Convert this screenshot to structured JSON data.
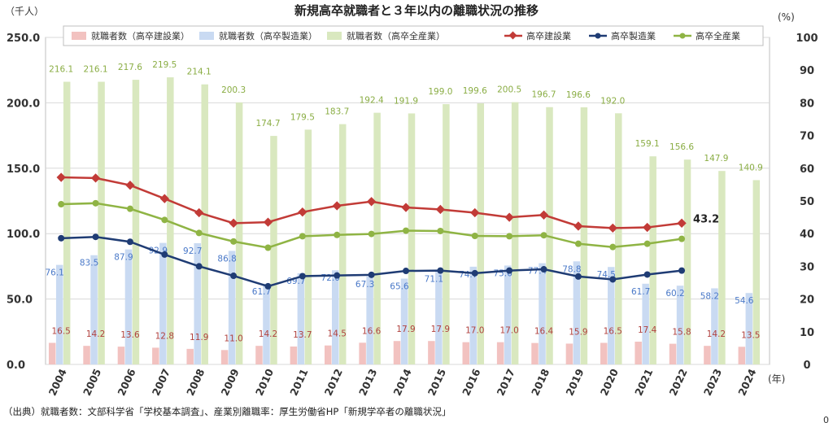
{
  "page_title": "新規高卒就職者と３年以内の離職状況の推移",
  "source_note": "（出典）就職者数：文部科学省「学校基本調査」、産業別離職率：厚生労働省HP「新規学卒者の離職状況」",
  "corner_mark": "0",
  "chart_data": {
    "type": "bar",
    "title": "新規高卒就職者と３年以内の離職状況の推移",
    "left_axis_unit": "（千人）",
    "right_axis_unit": "(%)",
    "x_unit": "(年)",
    "left_ylim": [
      0,
      250
    ],
    "left_ticks": [
      "0.0",
      "50.0",
      "100.0",
      "150.0",
      "200.0",
      "250.0"
    ],
    "left_tick_values": [
      0,
      50,
      100,
      150,
      200,
      250
    ],
    "right_ylim": [
      0,
      100
    ],
    "right_ticks": [
      "0",
      "10",
      "20",
      "30",
      "40",
      "50",
      "60",
      "70",
      "80",
      "90",
      "100"
    ],
    "right_tick_values": [
      0,
      10,
      20,
      30,
      40,
      50,
      60,
      70,
      80,
      90,
      100
    ],
    "grid": true,
    "legend_position": "top",
    "categories": [
      "2004",
      "2005",
      "2006",
      "2007",
      "2008",
      "2009",
      "2010",
      "2011",
      "2012",
      "2013",
      "2014",
      "2015",
      "2016",
      "2017",
      "2018",
      "2019",
      "2020",
      "2021",
      "2022",
      "2023",
      "2024"
    ],
    "bar_series": [
      {
        "name": "就職者数（高卒建設業）",
        "color": "#f2c2c0",
        "label_color": "#b0413e",
        "values": [
          16.5,
          14.2,
          13.6,
          12.8,
          11.9,
          11.0,
          14.2,
          13.7,
          14.5,
          16.6,
          17.9,
          17.9,
          17.0,
          17.0,
          16.4,
          15.9,
          16.5,
          17.4,
          15.8,
          14.2,
          13.5
        ],
        "labels": [
          "16.5",
          "14.2",
          "13.6",
          "12.8",
          "11.9",
          "11.0",
          "14.2",
          "13.7",
          "14.5",
          "16.6",
          "17.9",
          "17.9",
          "17.0",
          "17.0",
          "16.4",
          "15.9",
          "16.5",
          "17.4",
          "15.8",
          "14.2",
          "13.5"
        ]
      },
      {
        "name": "就職者数（高卒製造業）",
        "color": "#c9daf2",
        "label_color": "#4a79c8",
        "values": [
          76.1,
          83.5,
          87.9,
          92.9,
          92.7,
          86.8,
          61.7,
          69.7,
          72.0,
          67.3,
          65.6,
          71.1,
          74.7,
          75.6,
          77.4,
          78.8,
          74.5,
          61.7,
          60.2,
          58.2,
          54.6
        ],
        "labels": [
          "76.1",
          "83.5",
          "87.9",
          "92.9",
          "92.7",
          "86.8",
          "61.7",
          "69.7",
          "72.0",
          "67.3",
          "65.6",
          "71.1",
          "74.7",
          "75.6",
          "77.4",
          "78.8",
          "74.5",
          "61.7",
          "60.2",
          "58.2",
          "54.6"
        ]
      },
      {
        "name": "就職者数（高卒全産業）",
        "color": "#d9e8bf",
        "label_color": "#8aad44",
        "values": [
          216.1,
          216.1,
          217.6,
          219.5,
          214.1,
          200.3,
          174.7,
          179.5,
          183.7,
          192.4,
          191.9,
          199.0,
          199.6,
          200.5,
          196.7,
          196.6,
          192.0,
          159.1,
          156.6,
          147.9,
          140.9
        ],
        "labels": [
          "216.1",
          "216.1",
          "217.6",
          "219.5",
          "214.1",
          "200.3",
          "174.7",
          "179.5",
          "183.7",
          "192.4",
          "191.9",
          "199.0",
          "199.6",
          "200.5",
          "196.7",
          "196.6",
          "192.0",
          "159.1",
          "156.6",
          "147.9",
          "140.9"
        ]
      }
    ],
    "line_series": [
      {
        "name": "高卒建設業",
        "color": "#c23b37",
        "marker": "diamond",
        "values": [
          57.2,
          57.0,
          54.8,
          50.7,
          46.4,
          43.2,
          43.5,
          46.6,
          48.5,
          49.8,
          48.0,
          47.4,
          46.4,
          45.0,
          45.7,
          42.3,
          41.7,
          41.9,
          43.2
        ]
      },
      {
        "name": "高卒製造業",
        "color": "#1f3c74",
        "marker": "circle",
        "values": [
          38.6,
          39.0,
          37.5,
          33.6,
          30.0,
          27.1,
          23.9,
          27.0,
          27.2,
          27.4,
          28.6,
          28.7,
          27.9,
          28.7,
          29.1,
          26.9,
          26.0,
          27.5,
          28.7
        ]
      },
      {
        "name": "高卒全産業",
        "color": "#8fb444",
        "marker": "circle",
        "values": [
          49.0,
          49.3,
          47.6,
          44.2,
          40.2,
          37.6,
          35.7,
          39.2,
          39.6,
          39.9,
          40.9,
          40.8,
          39.3,
          39.2,
          39.5,
          36.9,
          35.9,
          36.9,
          38.4
        ]
      }
    ],
    "callout": "43.2"
  }
}
